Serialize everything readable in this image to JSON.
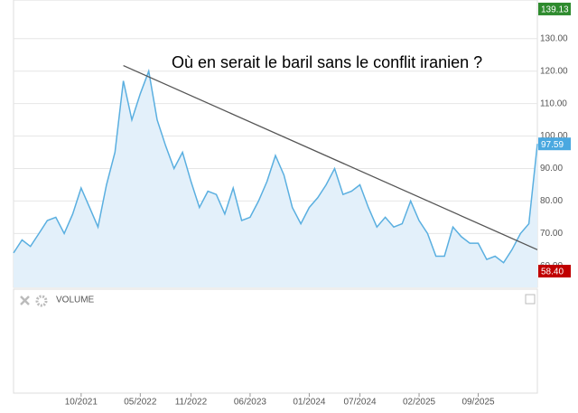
{
  "chart_data": {
    "type": "area",
    "title": "Où en serait le baril sans le conflit iranien ?",
    "x": [
      "02/2021",
      "03/2021",
      "04/2021",
      "05/2021",
      "06/2021",
      "07/2021",
      "08/2021",
      "09/2021",
      "10/2021",
      "11/2021",
      "12/2021",
      "01/2022",
      "02/2022",
      "03/2022",
      "04/2022",
      "05/2022",
      "06/2022",
      "07/2022",
      "08/2022",
      "09/2022",
      "10/2022",
      "11/2022",
      "12/2022",
      "01/2023",
      "02/2023",
      "03/2023",
      "04/2023",
      "05/2023",
      "06/2023",
      "07/2023",
      "08/2023",
      "09/2023",
      "10/2023",
      "11/2023",
      "12/2023",
      "01/2024",
      "02/2024",
      "03/2024",
      "04/2024",
      "05/2024",
      "06/2024",
      "07/2024",
      "08/2024",
      "09/2024",
      "10/2024",
      "11/2024",
      "12/2024",
      "01/2025",
      "02/2025",
      "03/2025",
      "04/2025",
      "05/2025",
      "06/2025",
      "07/2025",
      "08/2025",
      "09/2025",
      "10/2025",
      "11/2025",
      "12/2025",
      "01/2026",
      "02/2026",
      "03/2026",
      "04/2026"
    ],
    "series": [
      {
        "color": "#5aafe0",
        "values": [
          64,
          68,
          66,
          70,
          74,
          75,
          70,
          76,
          84,
          78,
          72,
          85,
          95,
          117,
          105,
          113,
          120,
          105,
          97,
          90,
          95,
          86,
          78,
          83,
          82,
          76,
          84,
          74,
          75,
          80,
          86,
          94,
          88,
          78,
          73,
          78,
          81,
          85,
          90,
          82,
          83,
          85,
          78,
          72,
          75,
          72,
          73,
          80,
          74,
          70,
          63,
          63,
          72,
          69,
          67,
          67,
          62,
          63,
          61,
          65,
          70,
          73,
          97.59
        ]
      }
    ],
    "trendline": {
      "x": [
        "03/2022",
        "04/2026"
      ],
      "values": [
        121.7,
        65
      ],
      "color": "#555555"
    },
    "xlim": [
      "02/2021",
      "04/2026"
    ],
    "xticks": [
      "10/2021",
      "05/2022",
      "11/2022",
      "06/2023",
      "01/2024",
      "07/2024",
      "02/2025",
      "09/2025"
    ],
    "ylim": [
      53.4,
      141.9
    ],
    "yticks": [
      {
        "value": 60,
        "label": "60.00"
      },
      {
        "value": 70,
        "label": "70.00"
      },
      {
        "value": 80,
        "label": "80.00"
      },
      {
        "value": 90,
        "label": "90.00"
      },
      {
        "value": 100,
        "label": "100.00"
      },
      {
        "value": 110,
        "label": "110.00"
      },
      {
        "value": 120,
        "label": "120.00"
      },
      {
        "value": 130,
        "label": "130.00"
      }
    ],
    "badges": [
      {
        "value": 139.13,
        "color": "#2e8b2e"
      },
      {
        "value": 97.59,
        "color": "#4aa8e0"
      },
      {
        "value": {
          "value": 58.4,
          "label": "58.40"
        },
        "color": "#c00000"
      }
    ],
    "volume_label": "VOLUME",
    "grid": true
  }
}
